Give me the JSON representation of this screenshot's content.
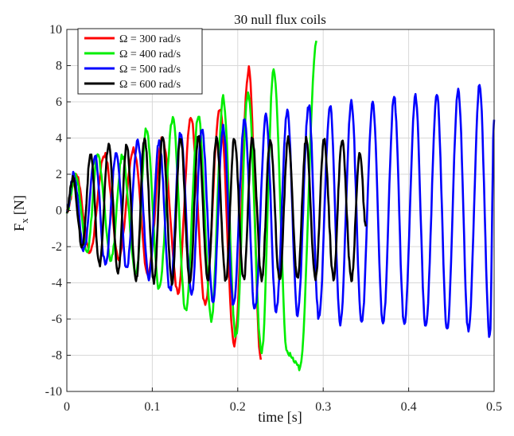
{
  "chart_data": {
    "type": "line",
    "title": "30 null flux coils",
    "xlabel": "time [s]",
    "ylabel_main": "F",
    "ylabel_sub": "x",
    "ylabel_unit": "[N]",
    "xlim": [
      0,
      0.5
    ],
    "ylim": [
      -10,
      10
    ],
    "x_ticks": [
      0,
      0.1,
      0.2,
      0.3,
      0.4,
      0.5
    ],
    "x_tick_labels": [
      "0",
      "0.1",
      "0.2",
      "0.3",
      "0.4",
      "0.5"
    ],
    "y_ticks": [
      -10,
      -8,
      -6,
      -4,
      -2,
      0,
      2,
      4,
      6,
      8,
      10
    ],
    "y_tick_labels": [
      "-10",
      "-8",
      "-6",
      "-4",
      "-2",
      "0",
      "2",
      "4",
      "6",
      "8",
      "10"
    ],
    "grid": true,
    "legend_position": "top-left",
    "series": [
      {
        "name": "Ω = 300 rad/s",
        "color": "#ff0000",
        "duration": 0.222,
        "peaks": [
          {
            "x": 0.011,
            "y": 2.0
          },
          {
            "x": 0.027,
            "y": -2.3
          },
          {
            "x": 0.044,
            "y": 3.1
          },
          {
            "x": 0.061,
            "y": -2.6
          },
          {
            "x": 0.078,
            "y": 3.4
          },
          {
            "x": 0.095,
            "y": -3.5
          },
          {
            "x": 0.112,
            "y": 4.0
          },
          {
            "x": 0.13,
            "y": -4.5
          },
          {
            "x": 0.145,
            "y": 5.2
          },
          {
            "x": 0.162,
            "y": -5.2
          },
          {
            "x": 0.179,
            "y": 5.7
          },
          {
            "x": 0.196,
            "y": -7.5
          },
          {
            "x": 0.213,
            "y": 7.8
          },
          {
            "x": 0.227,
            "y": -8.3
          }
        ]
      },
      {
        "name": "Ω = 400 rad/s",
        "color": "#00ee00",
        "duration": 0.295,
        "peaks": [
          {
            "x": 0.01,
            "y": 2.0
          },
          {
            "x": 0.024,
            "y": -2.2
          },
          {
            "x": 0.036,
            "y": 3.0
          },
          {
            "x": 0.052,
            "y": -2.7
          },
          {
            "x": 0.065,
            "y": 3.0
          },
          {
            "x": 0.081,
            "y": -3.6
          },
          {
            "x": 0.093,
            "y": 4.5
          },
          {
            "x": 0.108,
            "y": -4.3
          },
          {
            "x": 0.124,
            "y": 5.0
          },
          {
            "x": 0.139,
            "y": -5.5
          },
          {
            "x": 0.154,
            "y": 5.3
          },
          {
            "x": 0.169,
            "y": -6.0
          },
          {
            "x": 0.183,
            "y": 6.2
          },
          {
            "x": 0.198,
            "y": -7.0
          },
          {
            "x": 0.212,
            "y": 6.5
          },
          {
            "x": 0.228,
            "y": -7.9
          },
          {
            "x": 0.242,
            "y": 7.8
          },
          {
            "x": 0.258,
            "y": -7.9
          },
          {
            "x": 0.273,
            "y": -8.7
          },
          {
            "x": 0.292,
            "y": 9.2
          }
        ]
      },
      {
        "name": "Ω = 500 rad/s",
        "color": "#0000ff",
        "duration": 0.5,
        "peaks": [
          {
            "x": 0.008,
            "y": 2.0
          },
          {
            "x": 0.02,
            "y": -2.2
          },
          {
            "x": 0.033,
            "y": 3.0
          },
          {
            "x": 0.045,
            "y": -3.0
          },
          {
            "x": 0.058,
            "y": 3.2
          },
          {
            "x": 0.07,
            "y": -3.2
          },
          {
            "x": 0.083,
            "y": 3.8
          },
          {
            "x": 0.096,
            "y": -3.7
          },
          {
            "x": 0.108,
            "y": 3.8
          },
          {
            "x": 0.121,
            "y": -4.5
          },
          {
            "x": 0.133,
            "y": 4.3
          },
          {
            "x": 0.146,
            "y": -4.7
          },
          {
            "x": 0.158,
            "y": 4.5
          },
          {
            "x": 0.171,
            "y": -5.0
          },
          {
            "x": 0.183,
            "y": 4.6
          },
          {
            "x": 0.195,
            "y": -5.2
          },
          {
            "x": 0.208,
            "y": 5.0
          },
          {
            "x": 0.22,
            "y": -5.5
          },
          {
            "x": 0.233,
            "y": 5.2
          },
          {
            "x": 0.245,
            "y": -5.6
          },
          {
            "x": 0.258,
            "y": 5.5
          },
          {
            "x": 0.27,
            "y": -5.8
          },
          {
            "x": 0.283,
            "y": 5.8
          },
          {
            "x": 0.295,
            "y": -6.0
          },
          {
            "x": 0.308,
            "y": 5.8
          },
          {
            "x": 0.32,
            "y": -6.2
          },
          {
            "x": 0.333,
            "y": 6.0
          },
          {
            "x": 0.345,
            "y": -6.3
          },
          {
            "x": 0.358,
            "y": 6.0
          },
          {
            "x": 0.37,
            "y": -6.3
          },
          {
            "x": 0.383,
            "y": 6.2
          },
          {
            "x": 0.395,
            "y": -6.4
          },
          {
            "x": 0.408,
            "y": 6.3
          },
          {
            "x": 0.42,
            "y": -6.5
          },
          {
            "x": 0.433,
            "y": 6.4
          },
          {
            "x": 0.445,
            "y": -6.6
          },
          {
            "x": 0.458,
            "y": 6.6
          },
          {
            "x": 0.47,
            "y": -6.7
          },
          {
            "x": 0.483,
            "y": 6.9
          },
          {
            "x": 0.495,
            "y": -7.0
          },
          {
            "x": 0.5,
            "y": 5.0
          }
        ]
      },
      {
        "name": "Ω = 600 rad/s",
        "color": "#000000",
        "duration": 0.35,
        "peaks": [
          {
            "x": 0.007,
            "y": 1.8
          },
          {
            "x": 0.018,
            "y": -2.0
          },
          {
            "x": 0.028,
            "y": 3.1
          },
          {
            "x": 0.038,
            "y": -3.0
          },
          {
            "x": 0.049,
            "y": 3.6
          },
          {
            "x": 0.06,
            "y": -3.5
          },
          {
            "x": 0.07,
            "y": 3.6
          },
          {
            "x": 0.081,
            "y": -3.9
          },
          {
            "x": 0.091,
            "y": 4.0
          },
          {
            "x": 0.102,
            "y": -3.9
          },
          {
            "x": 0.112,
            "y": 4.1
          },
          {
            "x": 0.123,
            "y": -4.0
          },
          {
            "x": 0.133,
            "y": 4.1
          },
          {
            "x": 0.144,
            "y": -4.0
          },
          {
            "x": 0.154,
            "y": 4.1
          },
          {
            "x": 0.165,
            "y": -3.9
          },
          {
            "x": 0.175,
            "y": 4.0
          },
          {
            "x": 0.186,
            "y": -3.9
          },
          {
            "x": 0.196,
            "y": 4.0
          },
          {
            "x": 0.207,
            "y": -3.8
          },
          {
            "x": 0.217,
            "y": 4.0
          },
          {
            "x": 0.228,
            "y": -3.8
          },
          {
            "x": 0.238,
            "y": 3.9
          },
          {
            "x": 0.249,
            "y": -3.9
          },
          {
            "x": 0.259,
            "y": 4.0
          },
          {
            "x": 0.27,
            "y": -3.8
          },
          {
            "x": 0.28,
            "y": 3.9
          },
          {
            "x": 0.291,
            "y": -3.8
          },
          {
            "x": 0.301,
            "y": 3.9
          },
          {
            "x": 0.312,
            "y": -3.7
          },
          {
            "x": 0.322,
            "y": 3.9
          },
          {
            "x": 0.333,
            "y": -3.8
          },
          {
            "x": 0.343,
            "y": 3.2
          },
          {
            "x": 0.35,
            "y": -1.0
          }
        ]
      }
    ]
  }
}
